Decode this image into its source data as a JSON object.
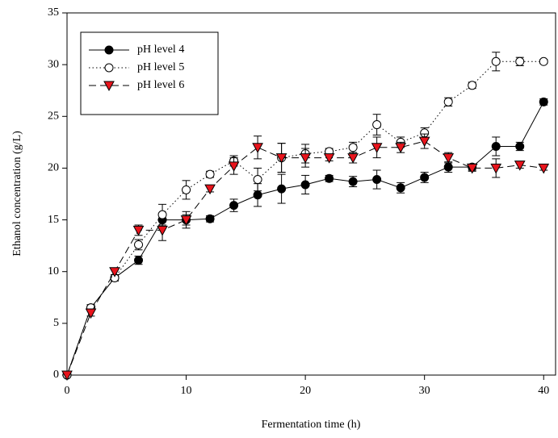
{
  "chart_data": {
    "type": "line",
    "x_label": "Fermentation time (h)",
    "y_label": "Ethanol concentration (g/L)",
    "x": [
      0,
      2,
      4,
      6,
      8,
      10,
      12,
      14,
      16,
      18,
      20,
      22,
      24,
      26,
      28,
      30,
      32,
      34,
      36,
      38,
      40
    ],
    "xlim": [
      0,
      41
    ],
    "xticks": [
      0,
      10,
      20,
      30,
      40
    ],
    "ylim": [
      0,
      35
    ],
    "yticks": [
      0,
      5,
      10,
      15,
      20,
      25,
      30,
      35
    ],
    "legend_position": "upper-left",
    "series": [
      {
        "name": "pH level 4",
        "color": "#000000",
        "marker": "circle",
        "marker_fill": "#000000",
        "dash": "solid",
        "values": [
          0,
          6.5,
          9.4,
          11.1,
          15.0,
          15.0,
          15.1,
          16.4,
          17.4,
          18.0,
          18.4,
          19.0,
          18.7,
          18.9,
          18.1,
          19.1,
          20.1,
          20.1,
          22.1,
          22.1,
          26.4
        ],
        "errors": [
          0,
          0.3,
          0.3,
          0.4,
          0.5,
          0.5,
          0.3,
          0.6,
          1.1,
          1.4,
          0.9,
          0.3,
          0.5,
          0.9,
          0.5,
          0.5,
          0.5,
          0.3,
          0.9,
          0.4,
          0.3
        ]
      },
      {
        "name": "pH level 5",
        "color": "#000000",
        "marker": "circle",
        "marker_fill": "#ffffff",
        "dash": "dotted",
        "values": [
          0,
          6.5,
          9.4,
          12.6,
          15.5,
          17.9,
          19.4,
          20.7,
          18.9,
          21.0,
          21.4,
          21.6,
          22.0,
          24.2,
          22.5,
          23.4,
          26.4,
          28.0,
          30.3,
          30.3,
          30.3
        ],
        "errors": [
          0,
          0.3,
          0.3,
          0.5,
          1.0,
          0.9,
          0.3,
          0.5,
          1.1,
          1.4,
          0.9,
          0.3,
          0.5,
          1.0,
          0.5,
          0.5,
          0.4,
          0.3,
          0.9,
          0.4,
          0.2
        ]
      },
      {
        "name": "pH level 6",
        "color": "#000000",
        "marker": "triangle-down",
        "marker_fill": "#e8141c",
        "dash": "dashed",
        "values": [
          0,
          6.0,
          10.0,
          14.0,
          14.0,
          15.0,
          18.0,
          20.2,
          22.0,
          21.0,
          21.0,
          21.0,
          21.0,
          22.0,
          22.0,
          22.6,
          21.0,
          20.0,
          20.0,
          20.3,
          20.0
        ],
        "errors": [
          0,
          0.3,
          0.3,
          0.5,
          1.0,
          0.8,
          0.3,
          0.8,
          1.1,
          1.4,
          0.9,
          0.3,
          0.5,
          1.0,
          0.5,
          0.7,
          0.5,
          0.3,
          0.9,
          0.3,
          0.2
        ]
      }
    ]
  }
}
